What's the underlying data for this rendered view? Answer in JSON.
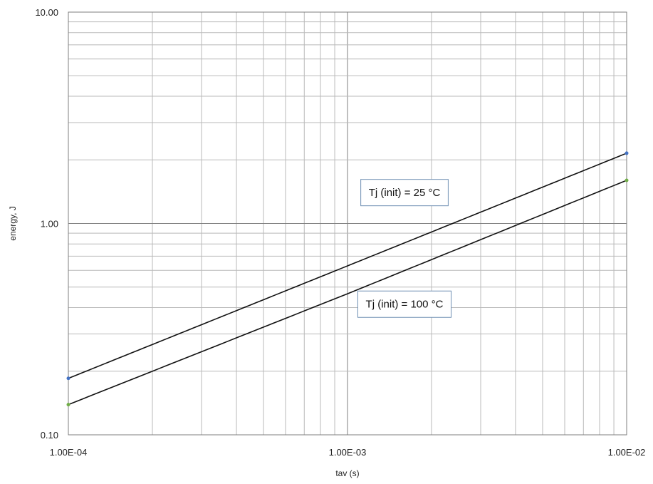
{
  "chart_data": {
    "type": "line",
    "title": "",
    "xlabel": "tav (s)",
    "ylabel": "energy, J",
    "x_scale": "log",
    "y_scale": "log",
    "xlim": [
      0.0001,
      0.01
    ],
    "ylim": [
      0.1,
      10
    ],
    "grid": true,
    "x_ticks": [
      0.0001,
      0.001,
      0.01
    ],
    "x_tick_labels": [
      "1.00E-04",
      "1.00E-03",
      "1.00E-02"
    ],
    "y_ticks": [
      0.1,
      1,
      10
    ],
    "y_tick_labels": [
      "0.10",
      "1.00",
      "10.00"
    ],
    "series": [
      {
        "x": [
          0.0001,
          0.001,
          0.01
        ],
        "values": [
          0.185,
          0.63,
          2.15
        ],
        "marker_color": "#4472c4"
      },
      {
        "x": [
          0.0001,
          0.001,
          0.01
        ],
        "values": [
          0.139,
          0.465,
          1.6
        ],
        "marker_color": "#70ad47"
      }
    ],
    "annotations": [
      {
        "text": "Tj (init) = 25 °C",
        "x": 0.0016,
        "y": 1.4
      },
      {
        "text": "Tj (init) = 100 °C",
        "x": 0.0016,
        "y": 0.415
      }
    ]
  }
}
